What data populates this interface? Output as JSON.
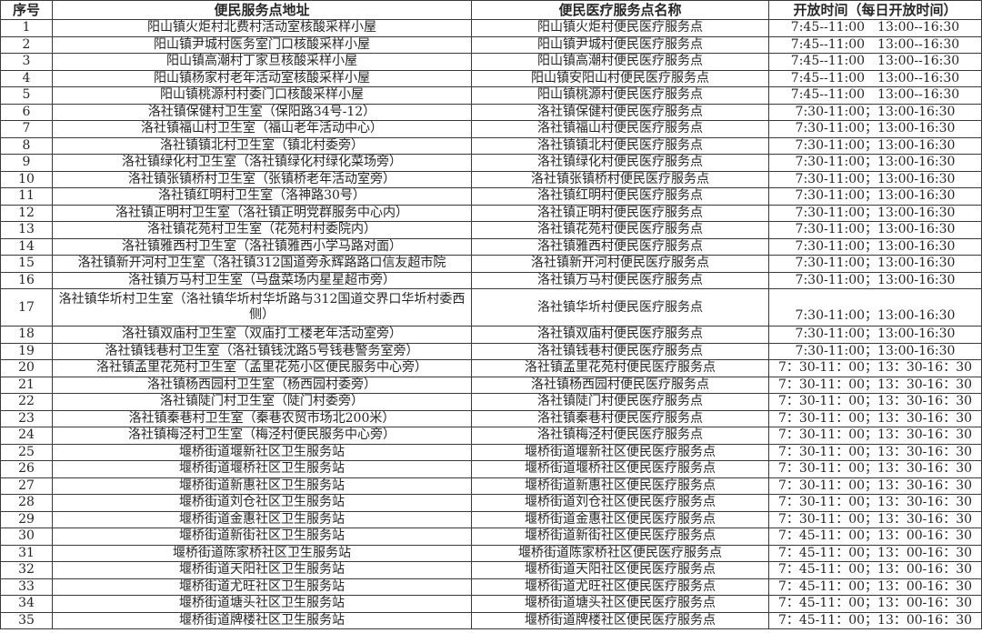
{
  "colors": {
    "background": "#ffffff",
    "border": "#3a3a3a",
    "text": "#262626"
  },
  "table": {
    "columns": [
      "序号",
      "便民服务点地址",
      "便民医疗服务点名称",
      "开放时间（每日开放时间）"
    ],
    "rows": [
      {
        "no": "1",
        "address": "阳山镇火炬村北费村活动室核酸采样小屋",
        "name": "阳山镇火炬村便民医疗服务点",
        "time": "7:45--11:00　13:00--16:30"
      },
      {
        "no": "2",
        "address": "阳山镇尹城村医务室门口核酸采样小屋",
        "name": "阳山镇尹城村便民医疗服务点",
        "time": "7:45--11:00　13:00--16:30"
      },
      {
        "no": "3",
        "address": "阳山镇高潮村丁家旦核酸采样小屋",
        "name": "阳山镇高潮村便民医疗服务点",
        "time": "7:45--11:00　13:00--16:30"
      },
      {
        "no": "4",
        "address": "阳山镇杨家村老年活动室核酸采样小屋",
        "name": "阳山镇安阳山村便民医疗服务点",
        "time": "7:45--11:00　13:00--16:30"
      },
      {
        "no": "5",
        "address": "阳山镇桃源村村委门口核酸采样小屋",
        "name": "阳山镇桃源村便民医疗服务点",
        "time": "7:45--11:00　13:00--16:30"
      },
      {
        "no": "6",
        "address": "洛社镇保健村卫生室（保阳路34号-12）",
        "name": "洛社镇保健村便民医疗服务点",
        "time": "7:30-11:00；13:00-16:30"
      },
      {
        "no": "7",
        "address": "洛社镇福山村卫生室（福山老年活动中心）",
        "name": "洛社镇福山村便民医疗服务点",
        "time": "7:30-11:00；13:00-16:30"
      },
      {
        "no": "8",
        "address": "洛社镇镇北村卫生室（镇北村委旁）",
        "name": "洛社镇镇北村便民医疗服务点",
        "time": "7:30-11:00；13:00-16:30"
      },
      {
        "no": "9",
        "address": "洛社镇绿化村卫生室（洛社镇绿化村绿化菜场旁）",
        "name": "洛社镇绿化村便民医疗服务点",
        "time": "7:30-11:00；13:00-16:30"
      },
      {
        "no": "10",
        "address": "洛社镇张镇桥村卫生室（张镇桥老年活动室旁）",
        "name": "洛社镇张镇桥村便民医疗服务点",
        "time": "7:30-11:00；13:00-16:30"
      },
      {
        "no": "11",
        "address": "洛社镇红明村卫生室（洛神路30号）",
        "name": "洛社镇红明村便民医疗服务点",
        "time": "7:30-11:00；13:00-16:30"
      },
      {
        "no": "12",
        "address": "洛社镇正明村卫生室（洛社镇正明党群服务中心内）",
        "name": "洛社镇正明村便民医疗服务点",
        "time": "7:30-11:00；13:00-16:30"
      },
      {
        "no": "13",
        "address": "洛社镇花苑村卫生室（花苑村村委院内）",
        "name": "洛社镇花苑村便民医疗服务点",
        "time": "7:30-11:00；13:00-16:30"
      },
      {
        "no": "14",
        "address": "洛社镇雅西村卫生室（洛社镇雅西小学马路对面）",
        "name": "洛社镇雅西村便民医疗服务点",
        "time": "7:30-11:00；13:00-16:30"
      },
      {
        "no": "15",
        "address": "洛社镇新开河村卫生室（洛社镇312国道旁永辉路路口信友超市院",
        "name": "洛社镇新开河村便民医疗服务点",
        "time": "7:30-11:00；13:00-16:30"
      },
      {
        "no": "16",
        "address": "洛社镇万马村卫生室（马盘菜场内星星超市旁）",
        "name": "洛社镇万马村便民医疗服务点",
        "time": "7:30-11:00；13:00-16:30"
      },
      {
        "no": "17",
        "address": "洛社镇华圻村卫生室（洛社镇华圻村华圻路与312国道交界口华圻村委西侧）",
        "name": "洛社镇华圻村便民医疗服务点",
        "time": "7:30-11:00；13:00-16:30"
      },
      {
        "no": "18",
        "address": "洛社镇双庙村卫生室（双庙打工楼老年活动室旁）",
        "name": "洛社镇双庙村便民医疗服务点",
        "time": "7:30-11:00；13:00-16:30"
      },
      {
        "no": "19",
        "address": "洛社镇钱巷村卫生室（洛社镇钱沈路5号钱巷警务室旁）",
        "name": "洛社镇钱巷村便民医疗服务点",
        "time": "7:30-11:00；13:00-16:30"
      },
      {
        "no": "20",
        "address": "洛社镇孟里花苑村卫生室（孟里花苑小区便民服务中心旁）",
        "name": "洛社镇孟里花苑村便民医疗服务点",
        "time": "7：30-11：00；13：30-16：30"
      },
      {
        "no": "21",
        "address": "洛社镇杨西园村卫生室（杨西园村委旁）",
        "name": "洛社镇杨西园村便民医疗服务点",
        "time": "7：30-11：00；13：30-16：30"
      },
      {
        "no": "22",
        "address": "洛社镇陡门村卫生室（陡门村委旁）",
        "name": "洛社镇陡门村便民医疗服务点",
        "time": "7：30-11：00；13：30-16：30"
      },
      {
        "no": "23",
        "address": "洛社镇秦巷村卫生室（秦巷农贸市场北200米）",
        "name": "洛社镇秦巷村便民医疗服务点",
        "time": "7：30-11：00；13：30-16：30"
      },
      {
        "no": "24",
        "address": "洛社镇梅泾村卫生室（梅泾村便民服务中心旁）",
        "name": "洛社镇梅泾村便民医疗服务点",
        "time": "7：30-11：00；13：30-16：30"
      },
      {
        "no": "25",
        "address": "堰桥街道堰新社区卫生服务站",
        "name": "堰桥街道堰新社区便民医疗服务点",
        "time": "7：30-11：00；13：30-16：30"
      },
      {
        "no": "26",
        "address": "堰桥街道堰桥社区卫生服务站",
        "name": "堰桥街道堰桥社区便民医疗服务点",
        "time": "7：30-11：00；13：30-16：30"
      },
      {
        "no": "27",
        "address": "堰桥街道新惠社区卫生服务站",
        "name": "堰桥街道新惠社区便民医疗服务点",
        "time": "7：30-11：00；13：30-16：30"
      },
      {
        "no": "28",
        "address": "堰桥街道刘仓社区卫生服务站",
        "name": "堰桥街道刘仓社区便民医疗服务点",
        "time": "7：30-11：00；13：30-16：30"
      },
      {
        "no": "29",
        "address": "堰桥街道金惠社区卫生服务站",
        "name": "堰桥街道金惠社区便民医疗服务点",
        "time": "7：30-11：00；13：30-16：30"
      },
      {
        "no": "30",
        "address": "堰桥街道新街社区卫生服务站",
        "name": "堰桥街道新街社区便民医疗服务点",
        "time": "7：45-11：00；13：00-16：30"
      },
      {
        "no": "31",
        "address": "堰桥街道陈家桥社区卫生服务站",
        "name": "堰桥街道陈家桥社区便民医疗服务点",
        "time": "7：45-11：00；13：00-16：30"
      },
      {
        "no": "32",
        "address": "堰桥街道天阳社区卫生服务站",
        "name": "堰桥街道天阳社区便民医疗服务点",
        "time": "7：45-11：00；13：00-16：30"
      },
      {
        "no": "33",
        "address": "堰桥街道尤旺社区卫生服务站",
        "name": "堰桥街道尤旺社区便民医疗服务点",
        "time": "7：45-11：00；13：00-16：30"
      },
      {
        "no": "34",
        "address": "堰桥街道塘头社区卫生服务站",
        "name": "堰桥街道塘头社区便民医疗服务点",
        "time": "7：45-11：00；13：00-16：30"
      },
      {
        "no": "35",
        "address": "堰桥街道牌楼社区卫生服务站",
        "name": "堰桥街道牌楼社区便民医疗服务点",
        "time": "7：45-11：00；13：00-16：30"
      }
    ]
  }
}
